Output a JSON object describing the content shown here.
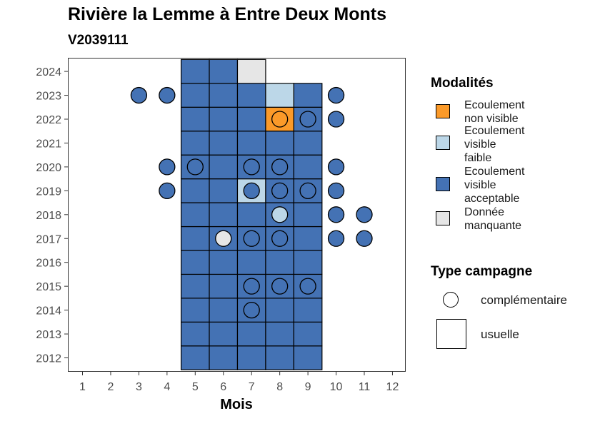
{
  "chart_data": {
    "type": "heatmap",
    "title": "Rivière la Lemme à Entre Deux Monts",
    "subtitle": "V2039111",
    "xlabel": "Mois",
    "ylabel": "",
    "x_ticks": [
      "1",
      "2",
      "3",
      "4",
      "5",
      "6",
      "7",
      "8",
      "9",
      "10",
      "11",
      "12"
    ],
    "y_ticks": [
      "2012",
      "2013",
      "2014",
      "2015",
      "2016",
      "2017",
      "2018",
      "2019",
      "2020",
      "2021",
      "2022",
      "2023",
      "2024"
    ],
    "xlim": [
      0.5,
      12.5
    ],
    "ylim": [
      2011.5,
      2024.5
    ],
    "colors": {
      "ecoulement_non_visible": "#fb9a29",
      "ecoulement_visible_faible": "#bcd7e8",
      "ecoulement_visible_acceptable": "#4472b4",
      "donnee_manquante": "#e6e6e6"
    },
    "legend_modalites": {
      "title": "Modalités",
      "items": [
        {
          "key": "ecoulement_non_visible",
          "label": "Ecoulement\nnon visible"
        },
        {
          "key": "ecoulement_visible_faible",
          "label": "Ecoulement\nvisible\nfaible"
        },
        {
          "key": "ecoulement_visible_acceptable",
          "label": "Ecoulement\nvisible\nacceptable"
        },
        {
          "key": "donnee_manquante",
          "label": "Donnée\nmanquante"
        }
      ]
    },
    "legend_type": {
      "title": "Type campagne",
      "items": [
        {
          "shape": "circle",
          "label": "complémentaire"
        },
        {
          "shape": "square",
          "label": "usuelle"
        }
      ]
    },
    "usuelle": [
      {
        "year": 2012,
        "month": 5,
        "m": "ecoulement_visible_acceptable"
      },
      {
        "year": 2012,
        "month": 6,
        "m": "ecoulement_visible_acceptable"
      },
      {
        "year": 2012,
        "month": 7,
        "m": "ecoulement_visible_acceptable"
      },
      {
        "year": 2012,
        "month": 8,
        "m": "ecoulement_visible_acceptable"
      },
      {
        "year": 2012,
        "month": 9,
        "m": "ecoulement_visible_acceptable"
      },
      {
        "year": 2013,
        "month": 5,
        "m": "ecoulement_visible_acceptable"
      },
      {
        "year": 2013,
        "month": 6,
        "m": "ecoulement_visible_acceptable"
      },
      {
        "year": 2013,
        "month": 7,
        "m": "ecoulement_visible_acceptable"
      },
      {
        "year": 2013,
        "month": 8,
        "m": "ecoulement_visible_acceptable"
      },
      {
        "year": 2013,
        "month": 9,
        "m": "ecoulement_visible_acceptable"
      },
      {
        "year": 2014,
        "month": 5,
        "m": "ecoulement_visible_acceptable"
      },
      {
        "year": 2014,
        "month": 6,
        "m": "ecoulement_visible_acceptable"
      },
      {
        "year": 2014,
        "month": 7,
        "m": "ecoulement_visible_acceptable"
      },
      {
        "year": 2014,
        "month": 8,
        "m": "ecoulement_visible_acceptable"
      },
      {
        "year": 2014,
        "month": 9,
        "m": "ecoulement_visible_acceptable"
      },
      {
        "year": 2015,
        "month": 5,
        "m": "ecoulement_visible_acceptable"
      },
      {
        "year": 2015,
        "month": 6,
        "m": "ecoulement_visible_acceptable"
      },
      {
        "year": 2015,
        "month": 7,
        "m": "ecoulement_visible_acceptable"
      },
      {
        "year": 2015,
        "month": 8,
        "m": "ecoulement_visible_acceptable"
      },
      {
        "year": 2015,
        "month": 9,
        "m": "ecoulement_visible_acceptable"
      },
      {
        "year": 2016,
        "month": 5,
        "m": "ecoulement_visible_acceptable"
      },
      {
        "year": 2016,
        "month": 6,
        "m": "ecoulement_visible_acceptable"
      },
      {
        "year": 2016,
        "month": 7,
        "m": "ecoulement_visible_acceptable"
      },
      {
        "year": 2016,
        "month": 8,
        "m": "ecoulement_visible_acceptable"
      },
      {
        "year": 2016,
        "month": 9,
        "m": "ecoulement_visible_acceptable"
      },
      {
        "year": 2017,
        "month": 5,
        "m": "ecoulement_visible_acceptable"
      },
      {
        "year": 2017,
        "month": 6,
        "m": "ecoulement_visible_acceptable"
      },
      {
        "year": 2017,
        "month": 7,
        "m": "ecoulement_visible_acceptable"
      },
      {
        "year": 2017,
        "month": 8,
        "m": "ecoulement_visible_acceptable"
      },
      {
        "year": 2017,
        "month": 9,
        "m": "ecoulement_visible_acceptable"
      },
      {
        "year": 2018,
        "month": 5,
        "m": "ecoulement_visible_acceptable"
      },
      {
        "year": 2018,
        "month": 6,
        "m": "ecoulement_visible_acceptable"
      },
      {
        "year": 2018,
        "month": 7,
        "m": "ecoulement_visible_acceptable"
      },
      {
        "year": 2018,
        "month": 8,
        "m": "ecoulement_visible_acceptable"
      },
      {
        "year": 2018,
        "month": 9,
        "m": "ecoulement_visible_acceptable"
      },
      {
        "year": 2019,
        "month": 5,
        "m": "ecoulement_visible_acceptable"
      },
      {
        "year": 2019,
        "month": 6,
        "m": "ecoulement_visible_acceptable"
      },
      {
        "year": 2019,
        "month": 7,
        "m": "ecoulement_visible_faible"
      },
      {
        "year": 2019,
        "month": 8,
        "m": "ecoulement_visible_acceptable"
      },
      {
        "year": 2019,
        "month": 9,
        "m": "ecoulement_visible_acceptable"
      },
      {
        "year": 2020,
        "month": 5,
        "m": "ecoulement_visible_acceptable"
      },
      {
        "year": 2020,
        "month": 6,
        "m": "ecoulement_visible_acceptable"
      },
      {
        "year": 2020,
        "month": 7,
        "m": "ecoulement_visible_acceptable"
      },
      {
        "year": 2020,
        "month": 8,
        "m": "ecoulement_visible_acceptable"
      },
      {
        "year": 2020,
        "month": 9,
        "m": "ecoulement_visible_acceptable"
      },
      {
        "year": 2021,
        "month": 5,
        "m": "ecoulement_visible_acceptable"
      },
      {
        "year": 2021,
        "month": 6,
        "m": "ecoulement_visible_acceptable"
      },
      {
        "year": 2021,
        "month": 7,
        "m": "ecoulement_visible_acceptable"
      },
      {
        "year": 2021,
        "month": 8,
        "m": "ecoulement_visible_acceptable"
      },
      {
        "year": 2021,
        "month": 9,
        "m": "ecoulement_visible_acceptable"
      },
      {
        "year": 2022,
        "month": 5,
        "m": "ecoulement_visible_acceptable"
      },
      {
        "year": 2022,
        "month": 6,
        "m": "ecoulement_visible_acceptable"
      },
      {
        "year": 2022,
        "month": 7,
        "m": "ecoulement_visible_acceptable"
      },
      {
        "year": 2022,
        "month": 8,
        "m": "ecoulement_non_visible"
      },
      {
        "year": 2022,
        "month": 9,
        "m": "ecoulement_visible_acceptable"
      },
      {
        "year": 2023,
        "month": 5,
        "m": "ecoulement_visible_acceptable"
      },
      {
        "year": 2023,
        "month": 6,
        "m": "ecoulement_visible_acceptable"
      },
      {
        "year": 2023,
        "month": 7,
        "m": "ecoulement_visible_acceptable"
      },
      {
        "year": 2023,
        "month": 8,
        "m": "ecoulement_visible_faible"
      },
      {
        "year": 2023,
        "month": 9,
        "m": "ecoulement_visible_acceptable"
      },
      {
        "year": 2024,
        "month": 5,
        "m": "ecoulement_visible_acceptable"
      },
      {
        "year": 2024,
        "month": 6,
        "m": "ecoulement_visible_acceptable"
      },
      {
        "year": 2024,
        "month": 7,
        "m": "donnee_manquante"
      }
    ],
    "complementaire": [
      {
        "year": 2014,
        "month": 7,
        "m": "ecoulement_visible_acceptable"
      },
      {
        "year": 2015,
        "month": 7,
        "m": "ecoulement_visible_acceptable"
      },
      {
        "year": 2015,
        "month": 8,
        "m": "ecoulement_visible_acceptable"
      },
      {
        "year": 2015,
        "month": 9,
        "m": "ecoulement_visible_acceptable"
      },
      {
        "year": 2017,
        "month": 6,
        "m": "donnee_manquante"
      },
      {
        "year": 2017,
        "month": 7,
        "m": "ecoulement_visible_acceptable"
      },
      {
        "year": 2017,
        "month": 8,
        "m": "ecoulement_visible_acceptable"
      },
      {
        "year": 2017,
        "month": 10,
        "m": "ecoulement_visible_acceptable"
      },
      {
        "year": 2017,
        "month": 11,
        "m": "ecoulement_visible_acceptable"
      },
      {
        "year": 2018,
        "month": 8,
        "m": "ecoulement_visible_faible"
      },
      {
        "year": 2018,
        "month": 10,
        "m": "ecoulement_visible_acceptable"
      },
      {
        "year": 2018,
        "month": 11,
        "m": "ecoulement_visible_acceptable"
      },
      {
        "year": 2019,
        "month": 4,
        "m": "ecoulement_visible_acceptable"
      },
      {
        "year": 2019,
        "month": 7,
        "m": "ecoulement_visible_acceptable"
      },
      {
        "year": 2019,
        "month": 8,
        "m": "ecoulement_visible_acceptable"
      },
      {
        "year": 2019,
        "month": 9,
        "m": "ecoulement_visible_acceptable"
      },
      {
        "year": 2019,
        "month": 10,
        "m": "ecoulement_visible_acceptable"
      },
      {
        "year": 2020,
        "month": 4,
        "m": "ecoulement_visible_acceptable"
      },
      {
        "year": 2020,
        "month": 5,
        "m": "ecoulement_visible_acceptable"
      },
      {
        "year": 2020,
        "month": 7,
        "m": "ecoulement_visible_acceptable"
      },
      {
        "year": 2020,
        "month": 8,
        "m": "ecoulement_visible_acceptable"
      },
      {
        "year": 2020,
        "month": 10,
        "m": "ecoulement_visible_acceptable"
      },
      {
        "year": 2022,
        "month": 8,
        "m": "ecoulement_non_visible"
      },
      {
        "year": 2022,
        "month": 9,
        "m": "ecoulement_visible_acceptable"
      },
      {
        "year": 2022,
        "month": 10,
        "m": "ecoulement_visible_acceptable"
      },
      {
        "year": 2023,
        "month": 3,
        "m": "ecoulement_visible_acceptable"
      },
      {
        "year": 2023,
        "month": 4,
        "m": "ecoulement_visible_acceptable"
      },
      {
        "year": 2023,
        "month": 10,
        "m": "ecoulement_visible_acceptable"
      }
    ]
  }
}
